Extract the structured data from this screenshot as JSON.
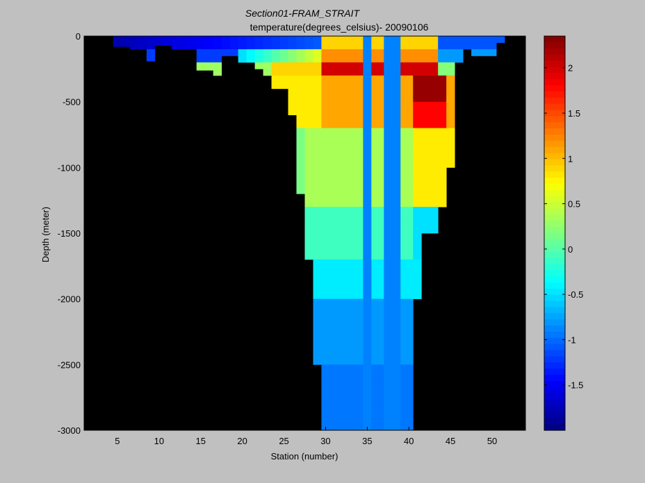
{
  "chart_data": {
    "type": "heatmap",
    "title": "Section01-FRAM_STRAIT",
    "subtitle": "temperature(degrees_celsius)- 20090106",
    "xlabel": "Station (number)",
    "ylabel": "Depth (meter)",
    "xlim": [
      1,
      54
    ],
    "ylim": [
      -3000,
      0
    ],
    "xticks": [
      5,
      10,
      15,
      20,
      25,
      30,
      35,
      40,
      45,
      50
    ],
    "yticks": [
      0,
      -500,
      -1000,
      -1500,
      -2000,
      -2500,
      -3000
    ],
    "colorbar": {
      "label_values": [
        2,
        1.5,
        1,
        0.5,
        0,
        -0.5,
        -1,
        -1.5
      ],
      "range": [
        -2,
        2.35
      ],
      "colormap": "jet"
    },
    "background_color": "#000000",
    "approx_temperature_by_station_depth": [
      {
        "station_range": [
          5,
          22
        ],
        "depth_range": [
          0,
          100
        ],
        "temperature": [
          -1.9,
          -1.0
        ]
      },
      {
        "station_range": [
          22,
          33
        ],
        "depth_range": [
          0,
          100
        ],
        "temperature": [
          -1.0,
          1.0
        ]
      },
      {
        "station_range": [
          33,
          44
        ],
        "depth_range": [
          100,
          300
        ],
        "temperature": [
          1.5,
          2.3
        ]
      },
      {
        "station_range": [
          40,
          44
        ],
        "depth_range": [
          300,
          600
        ],
        "temperature": [
          1.6,
          2.35
        ]
      },
      {
        "station_range": [
          23,
          33
        ],
        "depth_range": [
          200,
          700
        ],
        "temperature": [
          0.5,
          1.3
        ]
      },
      {
        "station_range": [
          25,
          44
        ],
        "depth_range": [
          700,
          1300
        ],
        "temperature": [
          0.0,
          0.8
        ]
      },
      {
        "station_range": [
          27,
          43
        ],
        "depth_range": [
          1300,
          1700
        ],
        "temperature": [
          -0.4,
          0.1
        ]
      },
      {
        "station_range": [
          28,
          41
        ],
        "depth_range": [
          1700,
          2000
        ],
        "temperature": [
          -0.5,
          -0.3
        ]
      },
      {
        "station_range": [
          28,
          40
        ],
        "depth_range": [
          2000,
          2500
        ],
        "temperature": [
          -0.9,
          -0.7
        ]
      },
      {
        "station_range": [
          30,
          39
        ],
        "depth_range": [
          2500,
          3000
        ],
        "temperature": [
          -1.0,
          -0.9
        ]
      }
    ]
  }
}
